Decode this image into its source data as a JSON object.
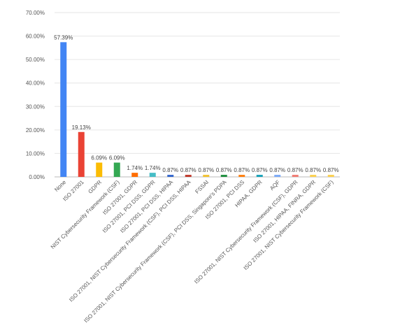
{
  "chart_data": {
    "type": "bar",
    "categories": [
      "None",
      "ISO 27001",
      "GDPR",
      "NIST Cybersecurity Framework (CSF)",
      "ISO 27001, GDPR",
      "ISO 27001, PCI DSS, GDPR",
      "ISO 27001, PCI DSS, HIPAA",
      "ISO 27001, NIST Cybersecurity Framework (CSF), PCI DSS, HIPAA",
      "FSSAI",
      "ISO 27001, NIST Cybersecurity Framework (CSF), PCI DSS, Singapore's PDPA",
      "ISO 27001, PCI DSS",
      "HIPAA, GDPR",
      "AQF",
      "ISO 27001, NIST Cybersecurity Framework (CSF), GDPR",
      "ISO 27001, HIPAA, FINRA, GDPR",
      "ISO 27001, NIST Cybersecurity Framework (CSF)"
    ],
    "values": [
      57.39,
      19.13,
      6.09,
      6.09,
      1.74,
      1.74,
      0.87,
      0.87,
      0.87,
      0.87,
      0.87,
      0.87,
      0.87,
      0.87,
      0.87,
      0.87
    ],
    "data_labels": [
      "57.39%",
      "19.13%",
      "6.09%",
      "6.09%",
      "1.74%",
      "1.74%",
      "0.87%",
      "0.87%",
      "0.87%",
      "0.87%",
      "0.87%",
      "0.87%",
      "0.87%",
      "0.87%",
      "0.87%",
      "0.87%"
    ],
    "colors": [
      "#4285F4",
      "#EA4335",
      "#FBBC04",
      "#34A853",
      "#FF6D01",
      "#46BDC6",
      "#3366CC",
      "#C0392B",
      "#F1C232",
      "#1E8E3E",
      "#FF7F0E",
      "#17A2B8",
      "#7BAAF7",
      "#F07B72",
      "#FCD04F",
      "#FCD04F"
    ],
    "yticks": [
      "0.00%",
      "10.00%",
      "20.00%",
      "30.00%",
      "40.00%",
      "50.00%",
      "60.00%",
      "70.00%"
    ],
    "ylim": [
      0,
      70
    ],
    "grid": true,
    "title": "",
    "xlabel": "",
    "ylabel": ""
  }
}
